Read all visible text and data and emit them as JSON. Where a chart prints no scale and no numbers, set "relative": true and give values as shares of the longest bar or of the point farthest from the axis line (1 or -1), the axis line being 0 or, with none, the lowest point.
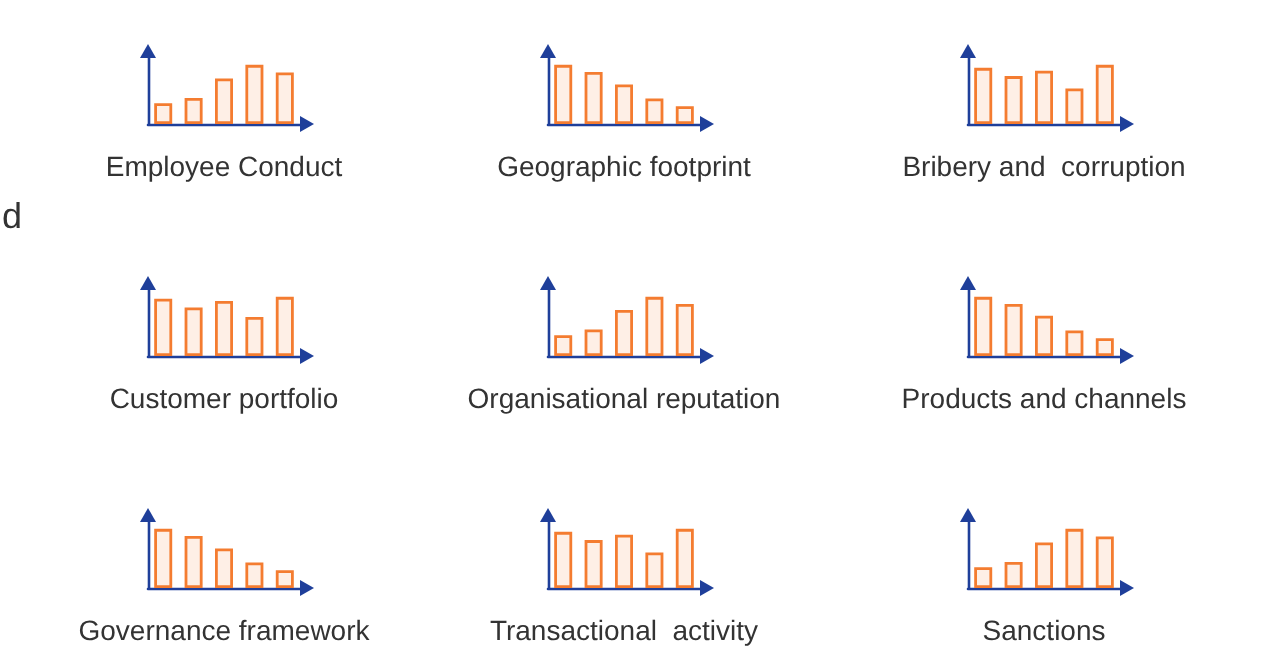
{
  "chart_data": [
    {
      "type": "bar",
      "relative": true,
      "xlabel": "Employee Conduct",
      "categories": [
        null,
        null,
        null,
        null,
        null
      ],
      "values": [
        0.35,
        0.44,
        0.77,
        1,
        0.87
      ],
      "color": "#f47c30"
    },
    {
      "type": "bar",
      "relative": true,
      "xlabel": "Geographic footprint",
      "categories": [
        null,
        null,
        null,
        null,
        null
      ],
      "values": [
        1,
        0.88,
        0.67,
        0.43,
        0.3
      ],
      "color": "#f47c30"
    },
    {
      "type": "bar",
      "relative": true,
      "xlabel": "Bribery and  corruption",
      "categories": [
        null,
        null,
        null,
        null,
        null
      ],
      "values": [
        0.95,
        0.81,
        0.9,
        0.6,
        1
      ],
      "color": "#f47c30"
    },
    {
      "type": "bar",
      "relative": true,
      "xlabel": "Customer portfolio",
      "categories": [
        null,
        null,
        null,
        null,
        null
      ],
      "values": [
        0.97,
        0.82,
        0.93,
        0.66,
        1
      ],
      "color": "#f47c30"
    },
    {
      "type": "bar",
      "relative": true,
      "xlabel": "Organisational reputation",
      "categories": [
        null,
        null,
        null,
        null,
        null
      ],
      "values": [
        0.35,
        0.45,
        0.78,
        1,
        0.88
      ],
      "color": "#f47c30"
    },
    {
      "type": "bar",
      "relative": true,
      "xlabel": "Products and channels",
      "categories": [
        null,
        null,
        null,
        null,
        null
      ],
      "values": [
        1,
        0.88,
        0.68,
        0.43,
        0.3
      ],
      "color": "#f47c30"
    },
    {
      "type": "bar",
      "relative": true,
      "xlabel": "Governance framework",
      "categories": [
        null,
        null,
        null,
        null,
        null
      ],
      "values": [
        1,
        0.88,
        0.67,
        0.43,
        0.3
      ],
      "color": "#f47c30"
    },
    {
      "type": "bar",
      "relative": true,
      "xlabel": "Transactional  activity",
      "categories": [
        null,
        null,
        null,
        null,
        null
      ],
      "values": [
        0.95,
        0.81,
        0.9,
        0.6,
        1
      ],
      "color": "#f47c30"
    },
    {
      "type": "bar",
      "relative": true,
      "xlabel": "Sanctions",
      "categories": [
        null,
        null,
        null,
        null,
        null
      ],
      "values": [
        0.35,
        0.44,
        0.77,
        1,
        0.87
      ],
      "color": "#f47c30"
    },
    {
      "type": "other",
      "annotations": [
        "d"
      ]
    }
  ]
}
